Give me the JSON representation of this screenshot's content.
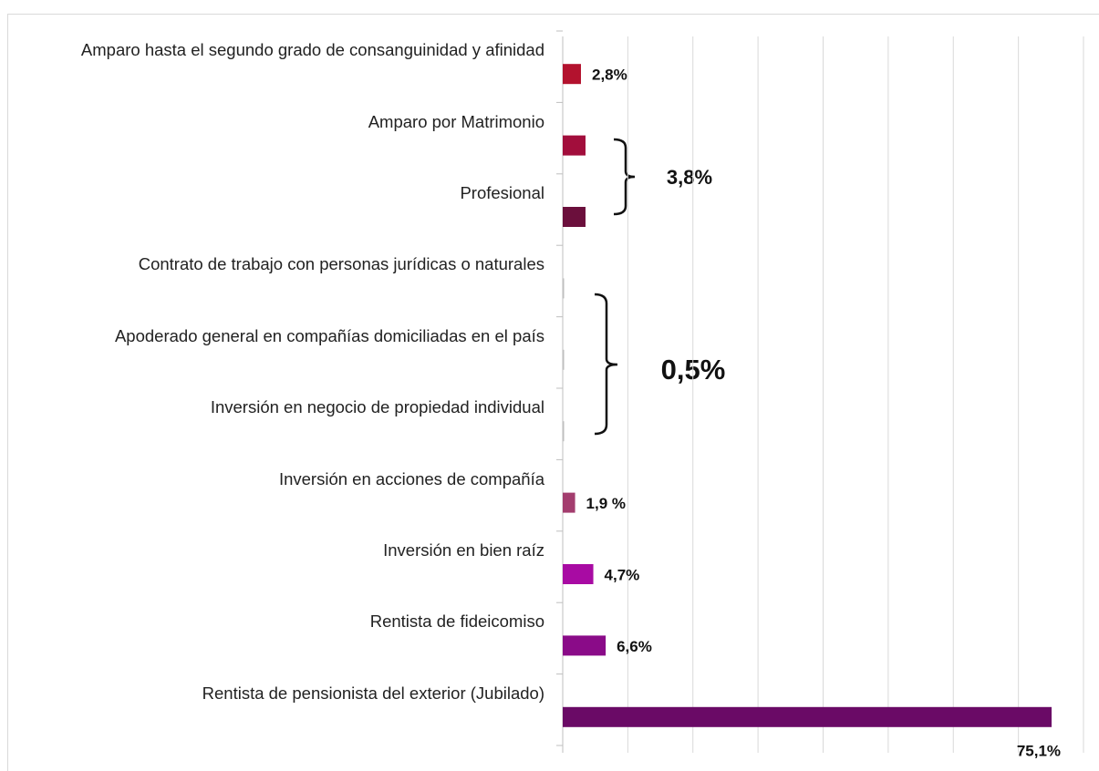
{
  "chart_data": {
    "type": "hbar",
    "categories": [
      "Amparo hasta el segundo grado de consanguinidad y afinidad",
      "Amparo por Matrimonio",
      "Profesional",
      "Contrato de trabajo con personas jurídicas o naturales",
      "Apoderado general en compañías domiciliadas en el país",
      "Inversión en negocio de propiedad individual",
      "Inversión en acciones de compañía",
      "Inversión en bien raíz",
      "Rentista de fideicomiso",
      "Rentista de pensionista del exterior (Jubilado)"
    ],
    "values": [
      2.8,
      3.5,
      3.5,
      0.2,
      0.2,
      0.1,
      1.9,
      4.7,
      6.6,
      75.1
    ],
    "value_labels": [
      "2,8%",
      null,
      null,
      null,
      null,
      null,
      "1,9 %",
      "4,7%",
      "6,6%",
      "75,1%"
    ],
    "colors": [
      "#b3122e",
      "#a20e3c",
      "#6b0f3c",
      "#bfbfbf",
      "#bfbfbf",
      "#bfbfbf",
      "#a33d6e",
      "#a80ba3",
      "#8a0b88",
      "#6a0a66"
    ],
    "xlim": [
      0,
      80
    ],
    "xticks": [
      0,
      10,
      20,
      30,
      40,
      50,
      60,
      70,
      80
    ],
    "grid": true,
    "annotations": [
      "3,8%",
      "0,5%"
    ]
  }
}
